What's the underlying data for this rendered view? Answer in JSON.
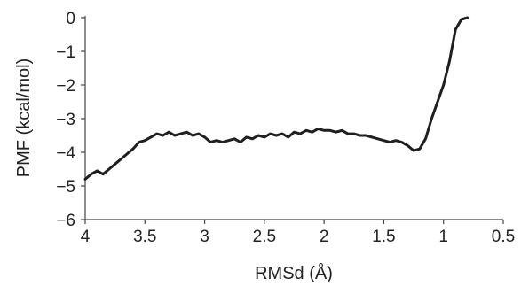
{
  "chart_data": {
    "type": "line",
    "title": "",
    "xlabel": "RMSd (Å)",
    "ylabel": "PMF (kcal/mol)",
    "xlim": [
      4,
      0.5
    ],
    "ylim": [
      -6,
      0
    ],
    "x_reversed": true,
    "x_ticks": [
      "4",
      "3.5",
      "3",
      "2.5",
      "2",
      "1.5",
      "1",
      "0.5"
    ],
    "y_ticks": [
      "0",
      "−1",
      "−2",
      "−3",
      "−4",
      "−5",
      "−6"
    ],
    "grid": false,
    "legend": "none",
    "line_color": "#1f1f1f",
    "axis_color": "#444444",
    "series": [
      {
        "x": [
          4.0,
          3.95,
          3.9,
          3.85,
          3.8,
          3.75,
          3.7,
          3.65,
          3.6,
          3.55,
          3.5,
          3.45,
          3.4,
          3.35,
          3.3,
          3.25,
          3.2,
          3.15,
          3.1,
          3.05,
          3.0,
          2.95,
          2.9,
          2.85,
          2.8,
          2.75,
          2.7,
          2.65,
          2.6,
          2.55,
          2.5,
          2.45,
          2.4,
          2.35,
          2.3,
          2.25,
          2.2,
          2.15,
          2.1,
          2.05,
          2.0,
          1.95,
          1.9,
          1.85,
          1.8,
          1.75,
          1.7,
          1.65,
          1.6,
          1.55,
          1.5,
          1.45,
          1.4,
          1.35,
          1.3,
          1.25,
          1.2,
          1.15,
          1.1,
          1.05,
          1.0,
          0.95,
          0.9,
          0.85,
          0.8
        ],
        "values": [
          -4.8,
          -4.65,
          -4.55,
          -4.65,
          -4.5,
          -4.35,
          -4.2,
          -4.05,
          -3.9,
          -3.7,
          -3.65,
          -3.55,
          -3.45,
          -3.5,
          -3.4,
          -3.5,
          -3.45,
          -3.4,
          -3.5,
          -3.45,
          -3.55,
          -3.7,
          -3.65,
          -3.7,
          -3.65,
          -3.6,
          -3.7,
          -3.55,
          -3.6,
          -3.5,
          -3.55,
          -3.45,
          -3.5,
          -3.45,
          -3.55,
          -3.4,
          -3.45,
          -3.35,
          -3.4,
          -3.3,
          -3.35,
          -3.35,
          -3.4,
          -3.35,
          -3.45,
          -3.45,
          -3.5,
          -3.5,
          -3.55,
          -3.6,
          -3.65,
          -3.7,
          -3.65,
          -3.7,
          -3.8,
          -3.95,
          -3.9,
          -3.6,
          -3.0,
          -2.5,
          -2.0,
          -1.3,
          -0.35,
          -0.05,
          0.0
        ]
      }
    ]
  }
}
